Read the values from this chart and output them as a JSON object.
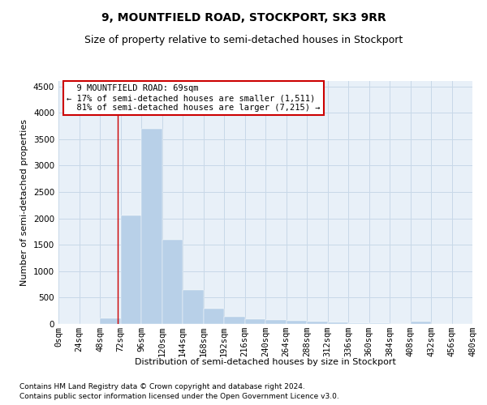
{
  "title": "9, MOUNTFIELD ROAD, STOCKPORT, SK3 9RR",
  "subtitle": "Size of property relative to semi-detached houses in Stockport",
  "xlabel": "Distribution of semi-detached houses by size in Stockport",
  "ylabel": "Number of semi-detached properties",
  "footnote1": "Contains HM Land Registry data © Crown copyright and database right 2024.",
  "footnote2": "Contains public sector information licensed under the Open Government Licence v3.0.",
  "annotation_line1": "9 MOUNTFIELD ROAD: 69sqm",
  "annotation_line2": "← 17% of semi-detached houses are smaller (1,511)",
  "annotation_line3": "81% of semi-detached houses are larger (7,215) →",
  "property_size": 69,
  "bin_edges": [
    0,
    24,
    48,
    72,
    96,
    120,
    144,
    168,
    192,
    216,
    240,
    264,
    288,
    312,
    336,
    360,
    384,
    408,
    432,
    456,
    480
  ],
  "bar_values": [
    0,
    0,
    100,
    2050,
    3700,
    1600,
    650,
    290,
    140,
    90,
    70,
    55,
    40,
    25,
    15,
    10,
    0,
    50,
    5,
    5
  ],
  "bar_color": "#b8d0e8",
  "bar_edge_color": "#b8d0e8",
  "grid_color": "#c8d8e8",
  "bg_color": "#e8f0f8",
  "annotation_box_color": "#cc0000",
  "vline_color": "#cc0000",
  "ylim": [
    0,
    4600
  ],
  "yticks": [
    0,
    500,
    1000,
    1500,
    2000,
    2500,
    3000,
    3500,
    4000,
    4500
  ],
  "title_fontsize": 10,
  "subtitle_fontsize": 9,
  "axis_label_fontsize": 8,
  "tick_fontsize": 7.5,
  "annotation_fontsize": 7.5,
  "footnote_fontsize": 6.5
}
